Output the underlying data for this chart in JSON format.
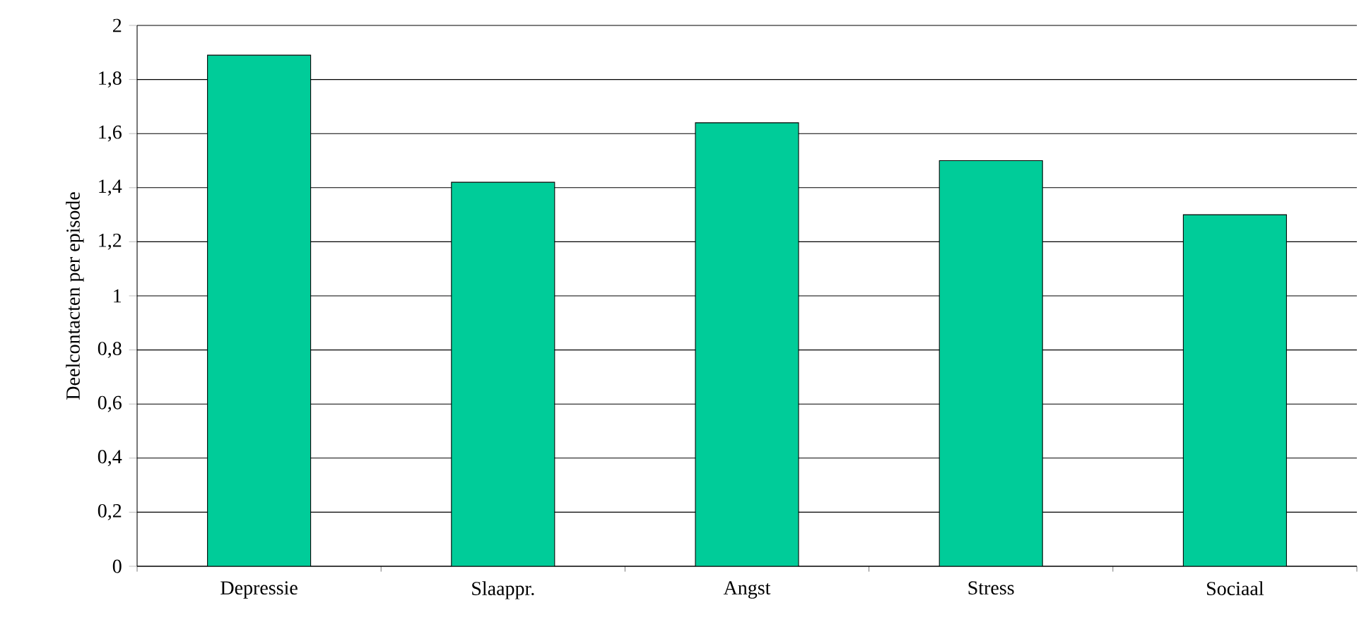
{
  "chart_data": {
    "type": "bar",
    "ylabel": "Deelcontacten per episode",
    "categories": [
      "Depressie",
      "Slaappr.",
      "Angst",
      "Stress",
      "Sociaal"
    ],
    "values": [
      1.89,
      1.42,
      1.64,
      1.5,
      1.3
    ],
    "color": "#00cc99",
    "ylim": [
      0,
      2
    ],
    "yticks": [
      0,
      {
        "value": 0.2,
        "label": "0,2"
      },
      {
        "value": 0.4,
        "label": "0,4"
      },
      {
        "value": 0.6,
        "label": "0,6"
      },
      {
        "value": 0.8,
        "label": "0,8"
      },
      1,
      {
        "value": 1.2,
        "label": "1,2"
      },
      {
        "value": 1.4,
        "label": "1,4"
      },
      {
        "value": 1.6,
        "label": "1,6"
      },
      {
        "value": 1.8,
        "label": "1,8"
      },
      2
    ],
    "grid": "y"
  }
}
